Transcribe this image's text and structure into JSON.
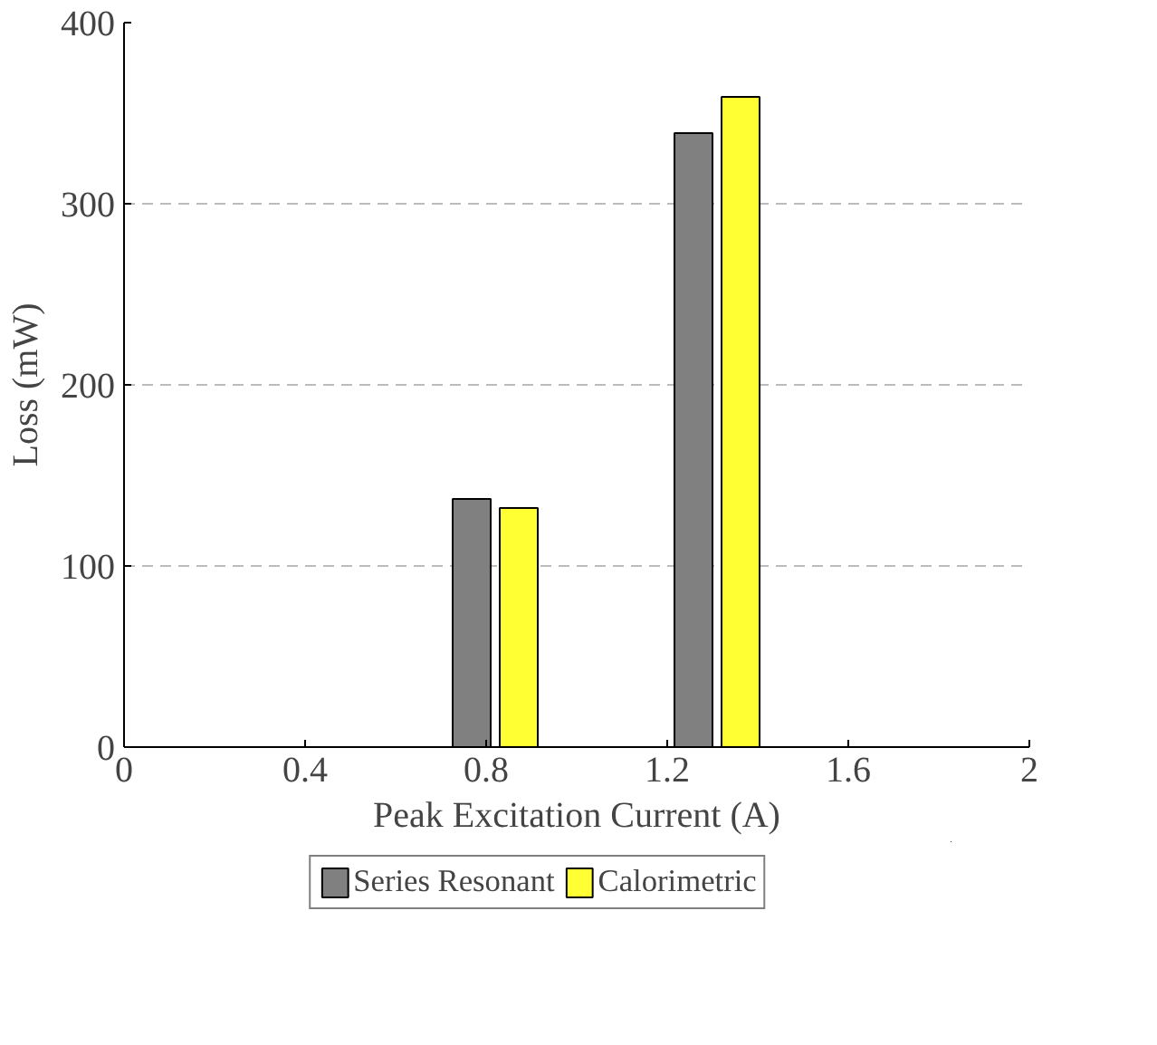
{
  "chart_data": {
    "type": "bar",
    "xlabel": "Peak Excitation Current (A)",
    "ylabel": "Loss (mW)",
    "x": [
      0.82,
      1.31
    ],
    "series": [
      {
        "name": "Series Resonant",
        "color": "#808080",
        "values": [
          137,
          339
        ]
      },
      {
        "name": "Calorimetric",
        "color": "#ffff33",
        "values": [
          132,
          359
        ]
      }
    ],
    "xlim": [
      0,
      2
    ],
    "xticks": [
      0,
      0.4,
      0.8,
      1.2,
      1.6,
      2
    ],
    "ylim": [
      0,
      400
    ],
    "yticks": [
      0,
      100,
      200,
      300,
      400
    ],
    "grid": "y",
    "legend": "bottom"
  }
}
